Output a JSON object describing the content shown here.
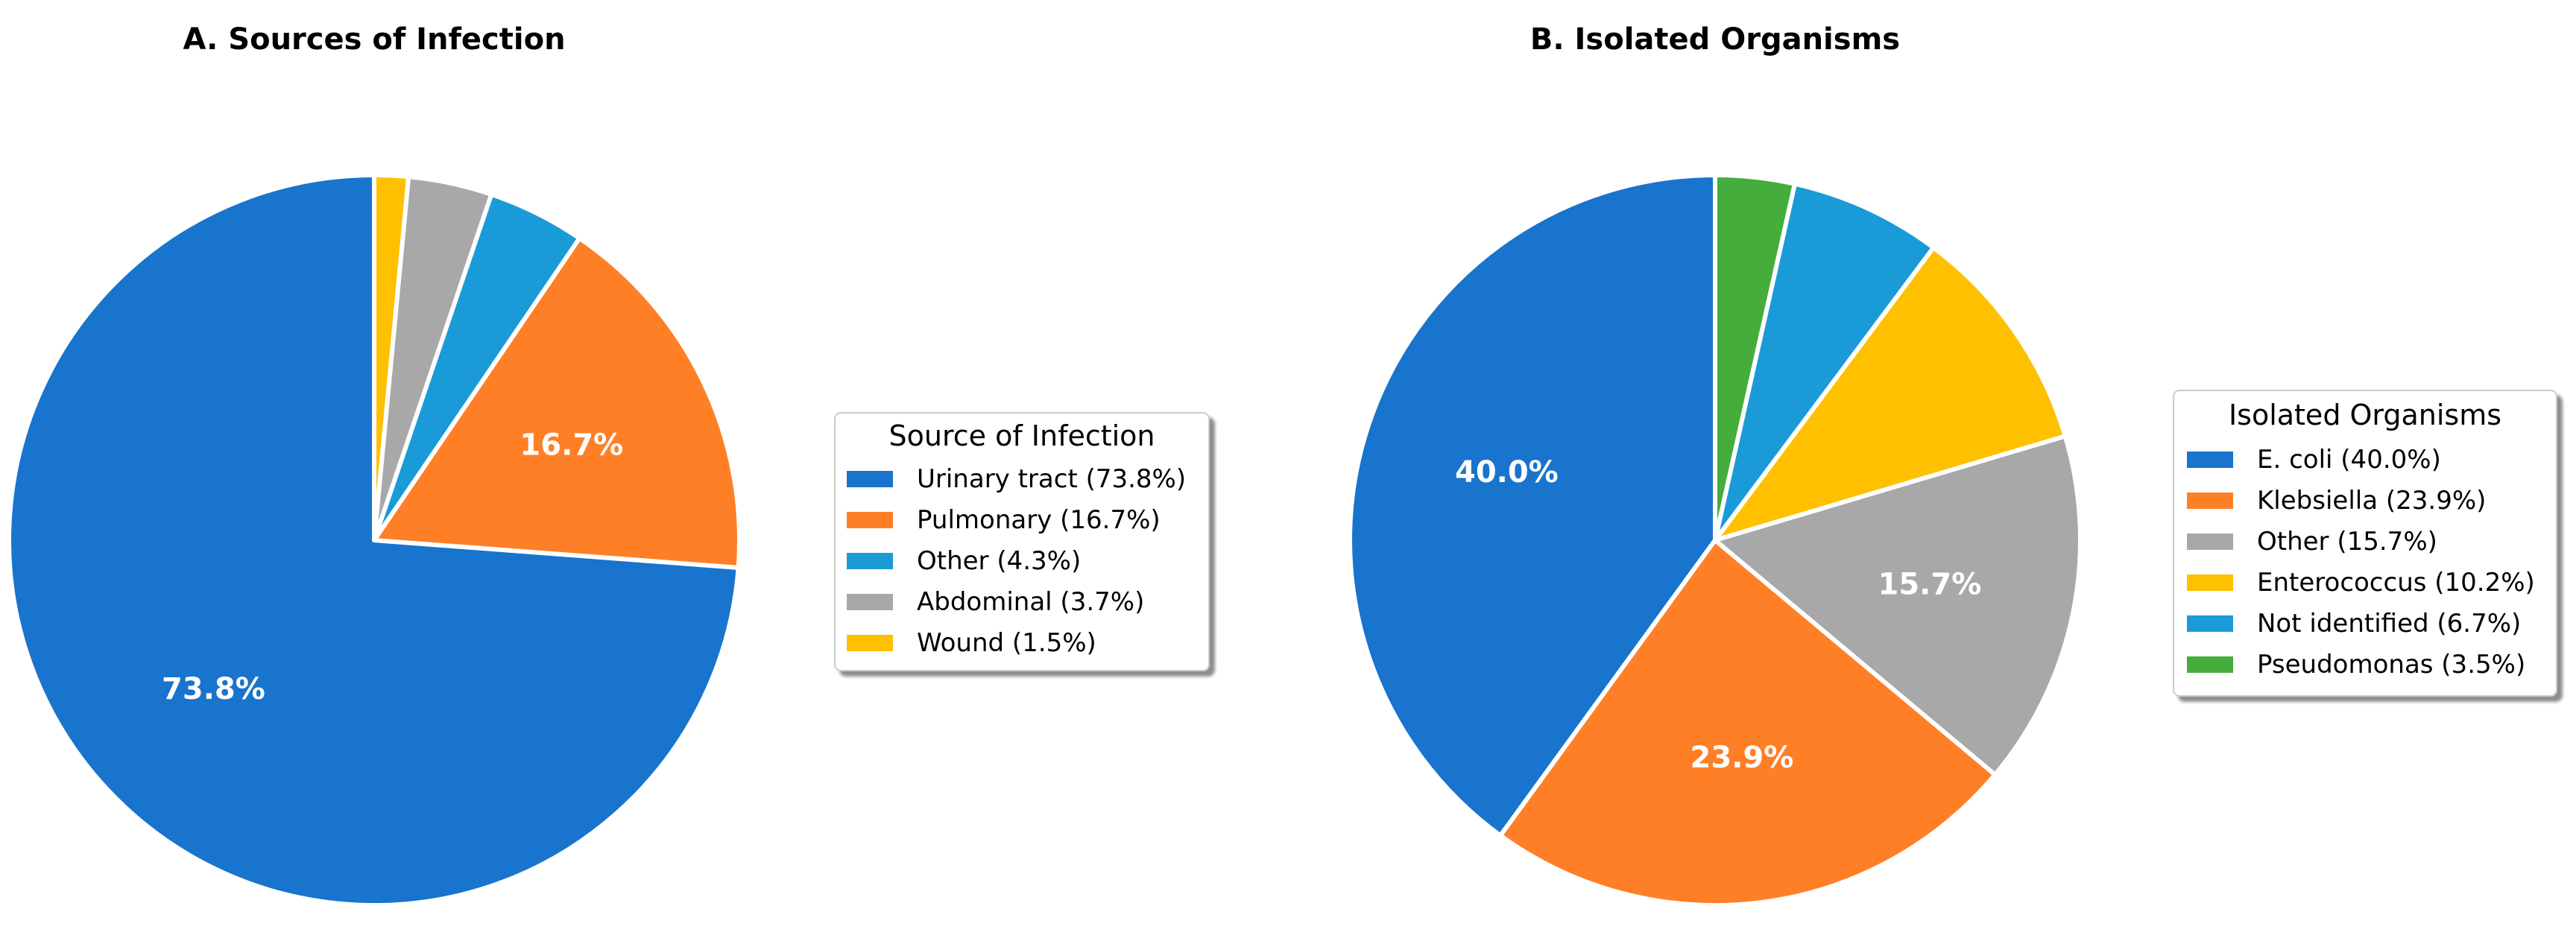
{
  "chart_data": [
    {
      "type": "pie",
      "title": "A. Sources of Infection",
      "legend_title": "Source of Infection",
      "legend_position": "right",
      "start_angle": "top (12 o'clock), counter-clockwise",
      "slices": [
        {
          "label": "Urinary tract",
          "value": 73.8,
          "legend": "Urinary tract (73.8%)",
          "pct_text": "73.8%",
          "show_pct": true,
          "color": "#1874CD"
        },
        {
          "label": "Pulmonary",
          "value": 16.7,
          "legend": "Pulmonary (16.7%)",
          "pct_text": "16.7%",
          "show_pct": true,
          "color": "#FF7F27"
        },
        {
          "label": "Other",
          "value": 4.3,
          "legend": "Other (4.3%)",
          "pct_text": "4.3%",
          "show_pct": false,
          "color": "#1B9AD8"
        },
        {
          "label": "Abdominal",
          "value": 3.7,
          "legend": "Abdominal (3.7%)",
          "pct_text": "3.7%",
          "show_pct": false,
          "color": "#A8A8A8"
        },
        {
          "label": "Wound",
          "value": 1.5,
          "legend": "Wound (1.5%)",
          "pct_text": "1.5%",
          "show_pct": false,
          "color": "#FFC000"
        }
      ]
    },
    {
      "type": "pie",
      "title": "B. Isolated Organisms",
      "legend_title": "Isolated Organisms",
      "legend_position": "right",
      "start_angle": "top (12 o'clock), counter-clockwise",
      "slices": [
        {
          "label": "E. coli",
          "value": 40.0,
          "legend": "E. coli (40.0%)",
          "pct_text": "40.0%",
          "show_pct": true,
          "color": "#1874CD"
        },
        {
          "label": "Klebsiella",
          "value": 23.9,
          "legend": "Klebsiella (23.9%)",
          "pct_text": "23.9%",
          "show_pct": true,
          "color": "#FF7F27"
        },
        {
          "label": "Other",
          "value": 15.7,
          "legend": "Other (15.7%)",
          "pct_text": "15.7%",
          "show_pct": true,
          "color": "#A8A8A8"
        },
        {
          "label": "Enterococcus",
          "value": 10.2,
          "legend": "Enterococcus (10.2%)",
          "pct_text": "10.2%",
          "show_pct": false,
          "color": "#FFC000"
        },
        {
          "label": "Not identified",
          "value": 6.7,
          "legend": "Not identified (6.7%)",
          "pct_text": "6.7%",
          "show_pct": false,
          "color": "#1B9AD8"
        },
        {
          "label": "Pseudomonas",
          "value": 3.5,
          "legend": "Pseudomonas (3.5%)",
          "pct_text": "3.5%",
          "show_pct": false,
          "color": "#44AD3C"
        }
      ]
    }
  ]
}
